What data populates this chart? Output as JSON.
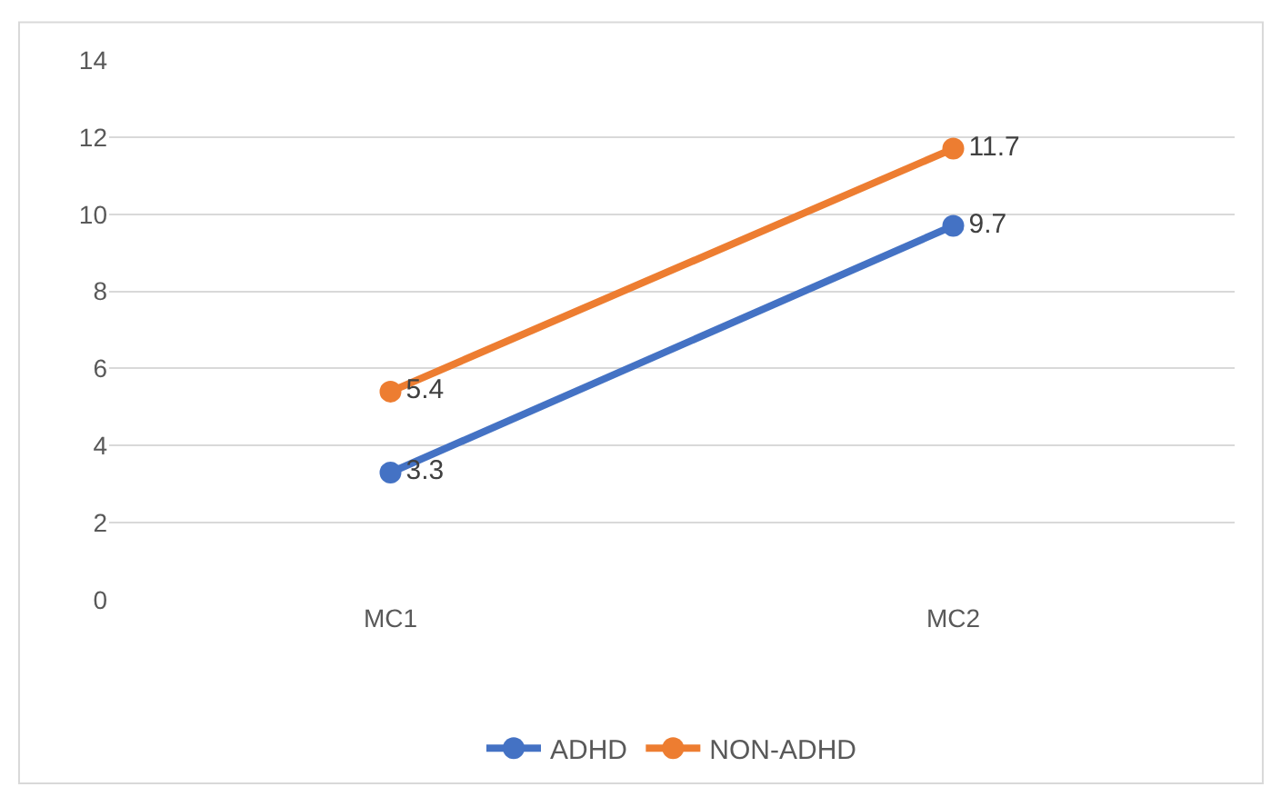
{
  "chart_data": {
    "type": "line",
    "categories": [
      "MC1",
      "MC2"
    ],
    "series": [
      {
        "name": "ADHD",
        "color": "#4472c4",
        "values": [
          3.3,
          9.7
        ]
      },
      {
        "name": "NON-ADHD",
        "color": "#ed7d31",
        "values": [
          5.4,
          11.7
        ]
      }
    ],
    "ylim": [
      0,
      14
    ],
    "yticks": [
      0,
      2,
      4,
      6,
      8,
      10,
      12,
      14
    ],
    "grid": "y",
    "legend": "bottom",
    "marker": "circle",
    "line_style": "solid",
    "data_labels": true
  }
}
